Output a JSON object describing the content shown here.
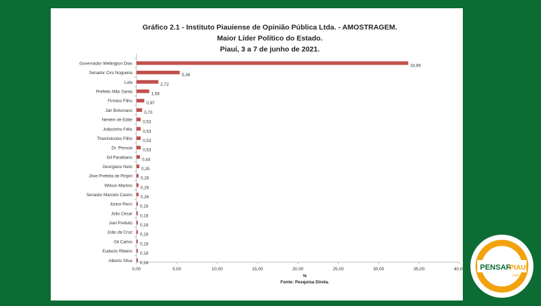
{
  "chart_data": {
    "type": "bar",
    "orientation": "horizontal",
    "title": [
      "Gráfico    2.1   -   Instituto Piauiense de Opinião Pública Ltda. - AMOSTRAGEM.",
      "Maior Líder Político do Estado.",
      "Piauí, 3 a 7 de junho de 2021."
    ],
    "categories": [
      "Governador Wellington Dias",
      "Senador Ciro Nogueira",
      "Lula",
      "Prefeito Mão Santa",
      "Firmino Filho",
      "Jair Bolsonaro",
      "Neném de Edite",
      "Joãozinho Félix",
      "Themistocles Filho",
      "Dr. Pessoa",
      "Gil Paraibano",
      "Georgiano Neto",
      "Jôve Prefeita de Piripiri",
      "Wilson Martins",
      "Senador Marcelo Castro",
      "Júnior Percí",
      "Júlio César",
      "Joel Prefeito",
      "João da Cruz",
      "Gil Carlos",
      "Eudecio Ribeiro",
      "Alberto Silva"
    ],
    "values": [
      33.66,
      5.36,
      2.72,
      1.58,
      0.97,
      0.7,
      0.53,
      0.53,
      0.53,
      0.53,
      0.44,
      0.35,
      0.26,
      0.26,
      0.26,
      0.18,
      0.18,
      0.18,
      0.18,
      0.18,
      0.18,
      0.18
    ],
    "value_labels": [
      "33,66",
      "5,36",
      "2,72",
      "1,58",
      "0,97",
      "0,70",
      "0,53",
      "0,53",
      "0,53",
      "0,53",
      "0,44",
      "0,35",
      "0,26",
      "0,26",
      "0,26",
      "0,18",
      "0,18",
      "0,18",
      "0,18",
      "0,18",
      "0,18",
      "0,18"
    ],
    "xlim": [
      0,
      40
    ],
    "x_ticks": [
      "0,00",
      "5,00",
      "10,00",
      "15,00",
      "20,00",
      "25,00",
      "30,00",
      "35,00",
      "40,00"
    ],
    "xlabel": "%",
    "source": "Fonte: Pesquisa Direta.",
    "bar_color": "#c0504d",
    "grid": false
  },
  "logo": {
    "text_left": "PENSAR",
    "text_right": "PIAUÍ",
    "text_small": ".com",
    "ring_color": "#f2a20c",
    "green": "#0d6b34"
  }
}
